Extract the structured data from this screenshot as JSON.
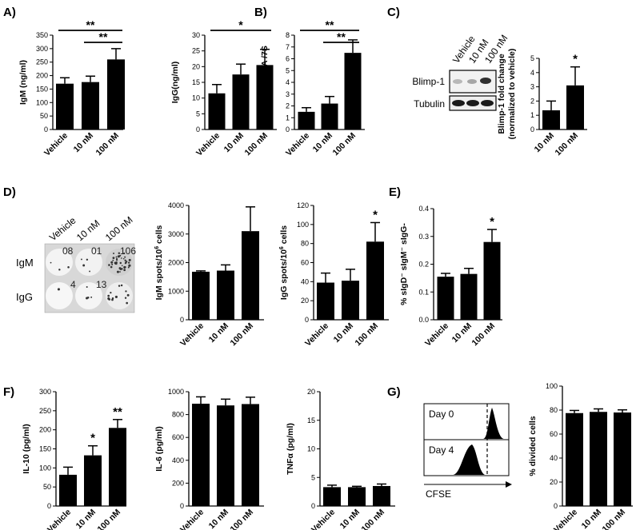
{
  "panels": {
    "A": "A)",
    "B": "B)",
    "C": "C)",
    "D": "D)",
    "E": "E)",
    "F": "F)",
    "G": "G)"
  },
  "blot": {
    "lanes": [
      "Vehicle",
      "10 nM",
      "100 nM"
    ],
    "rows": [
      "Blimp-1",
      "Tubulin"
    ]
  },
  "elispot": {
    "lanes": [
      "Vehicle",
      "10 nM",
      "100 nM"
    ],
    "rows": [
      "IgM",
      "IgG"
    ],
    "well_numbers": [
      [
        "08",
        "01",
        "106"
      ],
      [
        "",
        "4",
        "13"
      ]
    ]
  },
  "flow": {
    "day0_label": "Day 0",
    "day4_label": "Day 4",
    "xlabel": "CFSE"
  },
  "colors": {
    "bar": "#000000",
    "background": "#ffffff"
  },
  "chart_data": [
    {
      "id": "igm",
      "type": "bar",
      "categories": [
        "Vehicle",
        "10 nM",
        "100 nM"
      ],
      "values": [
        170,
        176,
        260
      ],
      "errors": [
        22,
        22,
        40
      ],
      "ylabel": "IgM (ng/ml)",
      "ylim": [
        0,
        350
      ],
      "yticks": [
        0,
        50,
        100,
        150,
        200,
        250,
        300,
        350
      ],
      "significance": [
        {
          "from": 0,
          "to": 2,
          "label": "**"
        },
        {
          "from": 1,
          "to": 2,
          "label": "**"
        }
      ]
    },
    {
      "id": "igg",
      "type": "bar",
      "categories": [
        "Vehicle",
        "10 nM",
        "100 nM"
      ],
      "values": [
        11.5,
        17.5,
        20.5
      ],
      "errors": [
        2.8,
        3.3,
        5.0
      ],
      "ylabel": "IgG(ng/ml)",
      "ylim": [
        0,
        30
      ],
      "yticks": [
        0,
        5,
        10,
        15,
        20,
        25,
        30
      ],
      "significance": [
        {
          "from": 0,
          "to": 2,
          "label": "*"
        }
      ]
    },
    {
      "id": "blimp-mrna",
      "type": "bar",
      "categories": [
        "Vehicle",
        "10 nM",
        "100 nM"
      ],
      "values": [
        1.5,
        2.2,
        6.5
      ],
      "errors": [
        0.35,
        0.6,
        1.1
      ],
      "ylabel": "Blimp-1 mRNA /7S",
      "ylim": [
        0,
        8
      ],
      "yticks": [
        0,
        1,
        2,
        3,
        4,
        5,
        6,
        7,
        8
      ],
      "significance": [
        {
          "from": 0,
          "to": 2,
          "label": "**"
        },
        {
          "from": 1,
          "to": 2,
          "label": "**"
        }
      ]
    },
    {
      "id": "blimp-fold",
      "type": "bar",
      "categories": [
        "10 nM",
        "100 nM"
      ],
      "values": [
        1.35,
        3.1
      ],
      "errors": [
        0.65,
        1.3
      ],
      "ylabel": "Blimp-1 fold change",
      "ylabel2": "(normalized to vehicle)",
      "ylim": [
        0,
        5
      ],
      "yticks": [
        0,
        1,
        2,
        3,
        4,
        5
      ],
      "stars": [
        "",
        "*"
      ]
    },
    {
      "id": "igm-spots",
      "type": "bar",
      "categories": [
        "Vehicle",
        "10 nM",
        "100 nM"
      ],
      "values": [
        1680,
        1720,
        3100
      ],
      "errors": [
        30,
        200,
        850
      ],
      "ylabel_pre": "IgM spots/10",
      "ylabel_sup": "6",
      "ylabel_post": " cells",
      "ylim": [
        0,
        4000
      ],
      "yticks": [
        0,
        1000,
        2000,
        3000,
        4000
      ]
    },
    {
      "id": "igg-spots",
      "type": "bar",
      "categories": [
        "Vehicle",
        "10 nM",
        "100 nM"
      ],
      "values": [
        39,
        41,
        82
      ],
      "errors": [
        10,
        12,
        20
      ],
      "ylabel_pre": "IgG spots/10",
      "ylabel_sup": "6",
      "ylabel_post": " cells",
      "ylim": [
        0,
        120
      ],
      "yticks": [
        0,
        20,
        40,
        60,
        80,
        100,
        120
      ],
      "stars": [
        "",
        "",
        "*"
      ]
    },
    {
      "id": "sigd",
      "type": "bar",
      "categories": [
        "Vehicle",
        "10 nM",
        "100 nM"
      ],
      "values": [
        0.155,
        0.165,
        0.28
      ],
      "errors": [
        0.012,
        0.02,
        0.045
      ],
      "ylabel": "% sIgD⁻ sIgM⁻ sIgG-",
      "ylim": [
        0,
        0.4
      ],
      "yticks": [
        0.0,
        0.1,
        0.2,
        0.3,
        0.4
      ],
      "stars": [
        "",
        "",
        "*"
      ]
    },
    {
      "id": "il10",
      "type": "bar",
      "categories": [
        "Vehicle",
        "10 nM",
        "100 nM"
      ],
      "values": [
        82,
        133,
        205
      ],
      "errors": [
        20,
        25,
        22
      ],
      "ylabel": "IL-10 (pg/ml)",
      "ylim": [
        0,
        300
      ],
      "yticks": [
        0,
        50,
        100,
        150,
        200,
        250,
        300
      ],
      "stars": [
        "",
        "*",
        "**"
      ]
    },
    {
      "id": "il6",
      "type": "bar",
      "categories": [
        "Vehicle",
        "10 nM",
        "100 nM"
      ],
      "values": [
        895,
        880,
        892
      ],
      "errors": [
        60,
        55,
        60
      ],
      "ylabel": "IL-6 (pg/ml)",
      "ylim": [
        0,
        1000
      ],
      "yticks": [
        0,
        200,
        400,
        600,
        800,
        1000
      ]
    },
    {
      "id": "tnf",
      "type": "bar",
      "categories": [
        "Vehicle",
        "10 nM",
        "100 nM"
      ],
      "values": [
        3.3,
        3.3,
        3.5
      ],
      "errors": [
        0.35,
        0.15,
        0.35
      ],
      "ylabel": "TNFα (pg/ml)",
      "ylim": [
        0,
        20
      ],
      "yticks": [
        0,
        5,
        10,
        15,
        20
      ]
    },
    {
      "id": "divided",
      "type": "bar",
      "categories": [
        "Vehicle",
        "10 nM",
        "100 nM"
      ],
      "values": [
        77.5,
        78.5,
        78
      ],
      "errors": [
        2.2,
        2.5,
        2.2
      ],
      "ylabel": "% divided cells",
      "ylim": [
        0,
        100
      ],
      "yticks": [
        0,
        20,
        40,
        60,
        80,
        100
      ]
    }
  ]
}
